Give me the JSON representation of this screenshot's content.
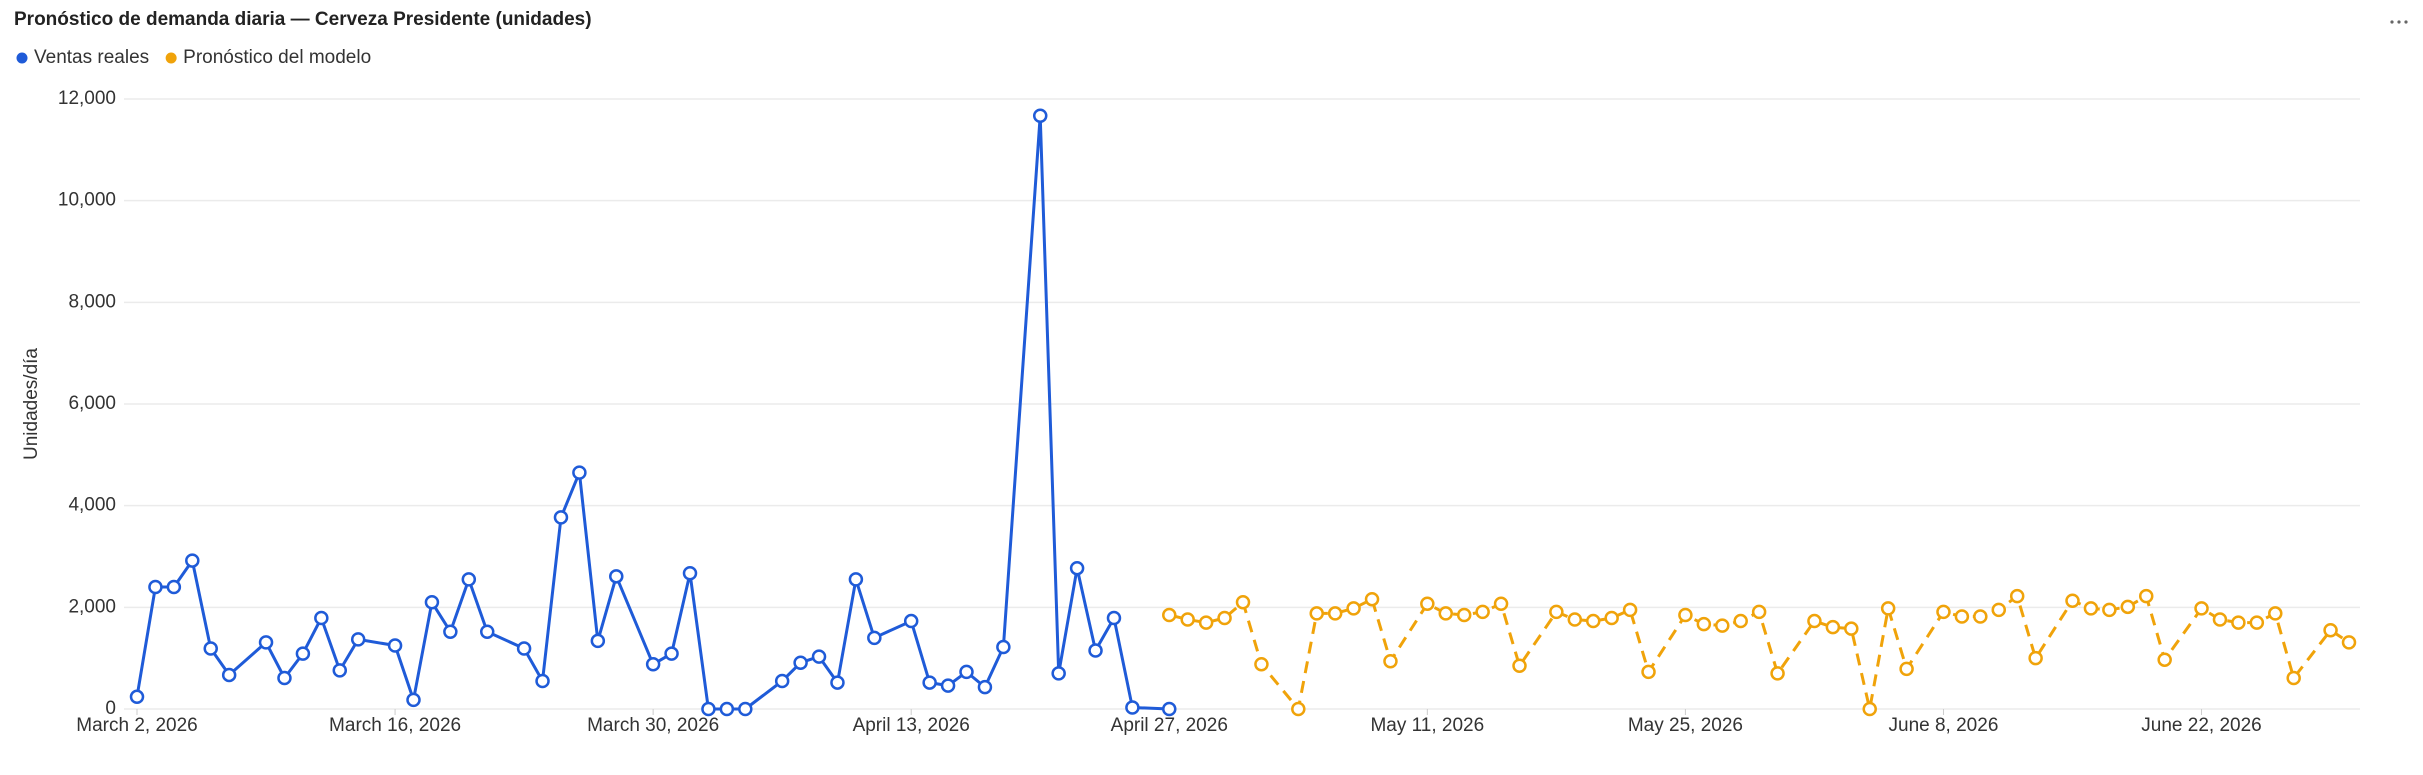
{
  "chart_data": {
    "type": "line",
    "title": "Pronóstico de demanda diaria — Cerveza Presidente (unidades)",
    "y_label": "Unidades/día",
    "xlim": [
      "2026-03-02",
      "2026-06-30"
    ],
    "xticks": [
      {
        "value": "2026-03-02",
        "label": "March 2, 2026"
      },
      {
        "value": "2026-03-16",
        "label": "March 16, 2026"
      },
      {
        "value": "2026-03-30",
        "label": "March 30, 2026"
      },
      {
        "value": "2026-04-13",
        "label": "April 13, 2026"
      },
      {
        "value": "2026-04-27",
        "label": "April 27, 2026"
      },
      {
        "value": "2026-05-11",
        "label": "May 11, 2026"
      },
      {
        "value": "2026-05-25",
        "label": "May 25, 2026"
      },
      {
        "value": "2026-06-08",
        "label": "June 8, 2026"
      },
      {
        "value": "2026-06-22",
        "label": "June 22, 2026"
      }
    ],
    "ylim": [
      0,
      12000
    ],
    "yticks": [
      0,
      {
        "value": 2000,
        "label": "2,000"
      },
      {
        "value": 4000,
        "label": "4,000"
      },
      {
        "value": 6000,
        "label": "6,000"
      },
      {
        "value": 8000,
        "label": "8,000"
      },
      {
        "value": 10000,
        "label": "10,000"
      },
      {
        "value": 12000,
        "label": "12,000"
      }
    ],
    "grid": true,
    "legend": "top-left",
    "series": [
      {
        "name": "Ventas reales",
        "color": "#1f5bd8",
        "line_style": "solid",
        "x": [
          "2026-03-02",
          "2026-03-03",
          "2026-03-04",
          "2026-03-05",
          "2026-03-06",
          "2026-03-07",
          "2026-03-09",
          "2026-03-10",
          "2026-03-11",
          "2026-03-12",
          "2026-03-13",
          "2026-03-14",
          "2026-03-16",
          "2026-03-17",
          "2026-03-18",
          "2026-03-19",
          "2026-03-20",
          "2026-03-21",
          "2026-03-23",
          "2026-03-24",
          "2026-03-25",
          "2026-03-26",
          "2026-03-27",
          "2026-03-28",
          "2026-03-30",
          "2026-03-31",
          "2026-04-01",
          "2026-04-02",
          "2026-04-03",
          "2026-04-04",
          "2026-04-06",
          "2026-04-07",
          "2026-04-08",
          "2026-04-09",
          "2026-04-10",
          "2026-04-11",
          "2026-04-13",
          "2026-04-14",
          "2026-04-15",
          "2026-04-16",
          "2026-04-17",
          "2026-04-18",
          "2026-04-20",
          "2026-04-21",
          "2026-04-22",
          "2026-04-23",
          "2026-04-24",
          "2026-04-25",
          "2026-04-27"
        ],
        "values": [
          240,
          2400,
          2400,
          2920,
          1190,
          670,
          1310,
          610,
          1090,
          1790,
          760,
          1370,
          1250,
          180,
          2100,
          1520,
          2550,
          1520,
          1190,
          550,
          3770,
          4650,
          1340,
          2610,
          880,
          1090,
          2670,
          0,
          0,
          0,
          550,
          910,
          1030,
          520,
          2550,
          1400,
          1730,
          520,
          460,
          730,
          430,
          1220,
          11670,
          700,
          2770,
          1150,
          1790,
          30,
          0
        ]
      },
      {
        "name": "Pronóstico del modelo",
        "color": "#f0a30a",
        "line_style": "dashed",
        "x": [
          "2026-04-27",
          "2026-04-28",
          "2026-04-29",
          "2026-04-30",
          "2026-05-01",
          "2026-05-02",
          "2026-05-04",
          "2026-05-05",
          "2026-05-06",
          "2026-05-07",
          "2026-05-08",
          "2026-05-09",
          "2026-05-11",
          "2026-05-12",
          "2026-05-13",
          "2026-05-14",
          "2026-05-15",
          "2026-05-16",
          "2026-05-18",
          "2026-05-19",
          "2026-05-20",
          "2026-05-21",
          "2026-05-22",
          "2026-05-23",
          "2026-05-25",
          "2026-05-26",
          "2026-05-27",
          "2026-05-28",
          "2026-05-29",
          "2026-05-30",
          "2026-06-01",
          "2026-06-02",
          "2026-06-03",
          "2026-06-04",
          "2026-06-05",
          "2026-06-06",
          "2026-06-08",
          "2026-06-09",
          "2026-06-10",
          "2026-06-11",
          "2026-06-12",
          "2026-06-13",
          "2026-06-15",
          "2026-06-16",
          "2026-06-17",
          "2026-06-18",
          "2026-06-19",
          "2026-06-20",
          "2026-06-22",
          "2026-06-23",
          "2026-06-24",
          "2026-06-25",
          "2026-06-26",
          "2026-06-27",
          "2026-06-29",
          "2026-06-30"
        ],
        "values": [
          1850,
          1760,
          1700,
          1790,
          2100,
          880,
          0,
          1880,
          1880,
          1980,
          2160,
          940,
          2070,
          1880,
          1850,
          1910,
          2070,
          850,
          1910,
          1760,
          1730,
          1790,
          1950,
          730,
          1850,
          1670,
          1640,
          1730,
          1910,
          700,
          1730,
          1610,
          1580,
          0,
          1980,
          790,
          1910,
          1820,
          1820,
          1950,
          2220,
          1000,
          2130,
          1980,
          1950,
          2010,
          2220,
          970,
          1980,
          1760,
          1700,
          1700,
          1880,
          610,
          1550,
          1310
        ]
      }
    ]
  }
}
